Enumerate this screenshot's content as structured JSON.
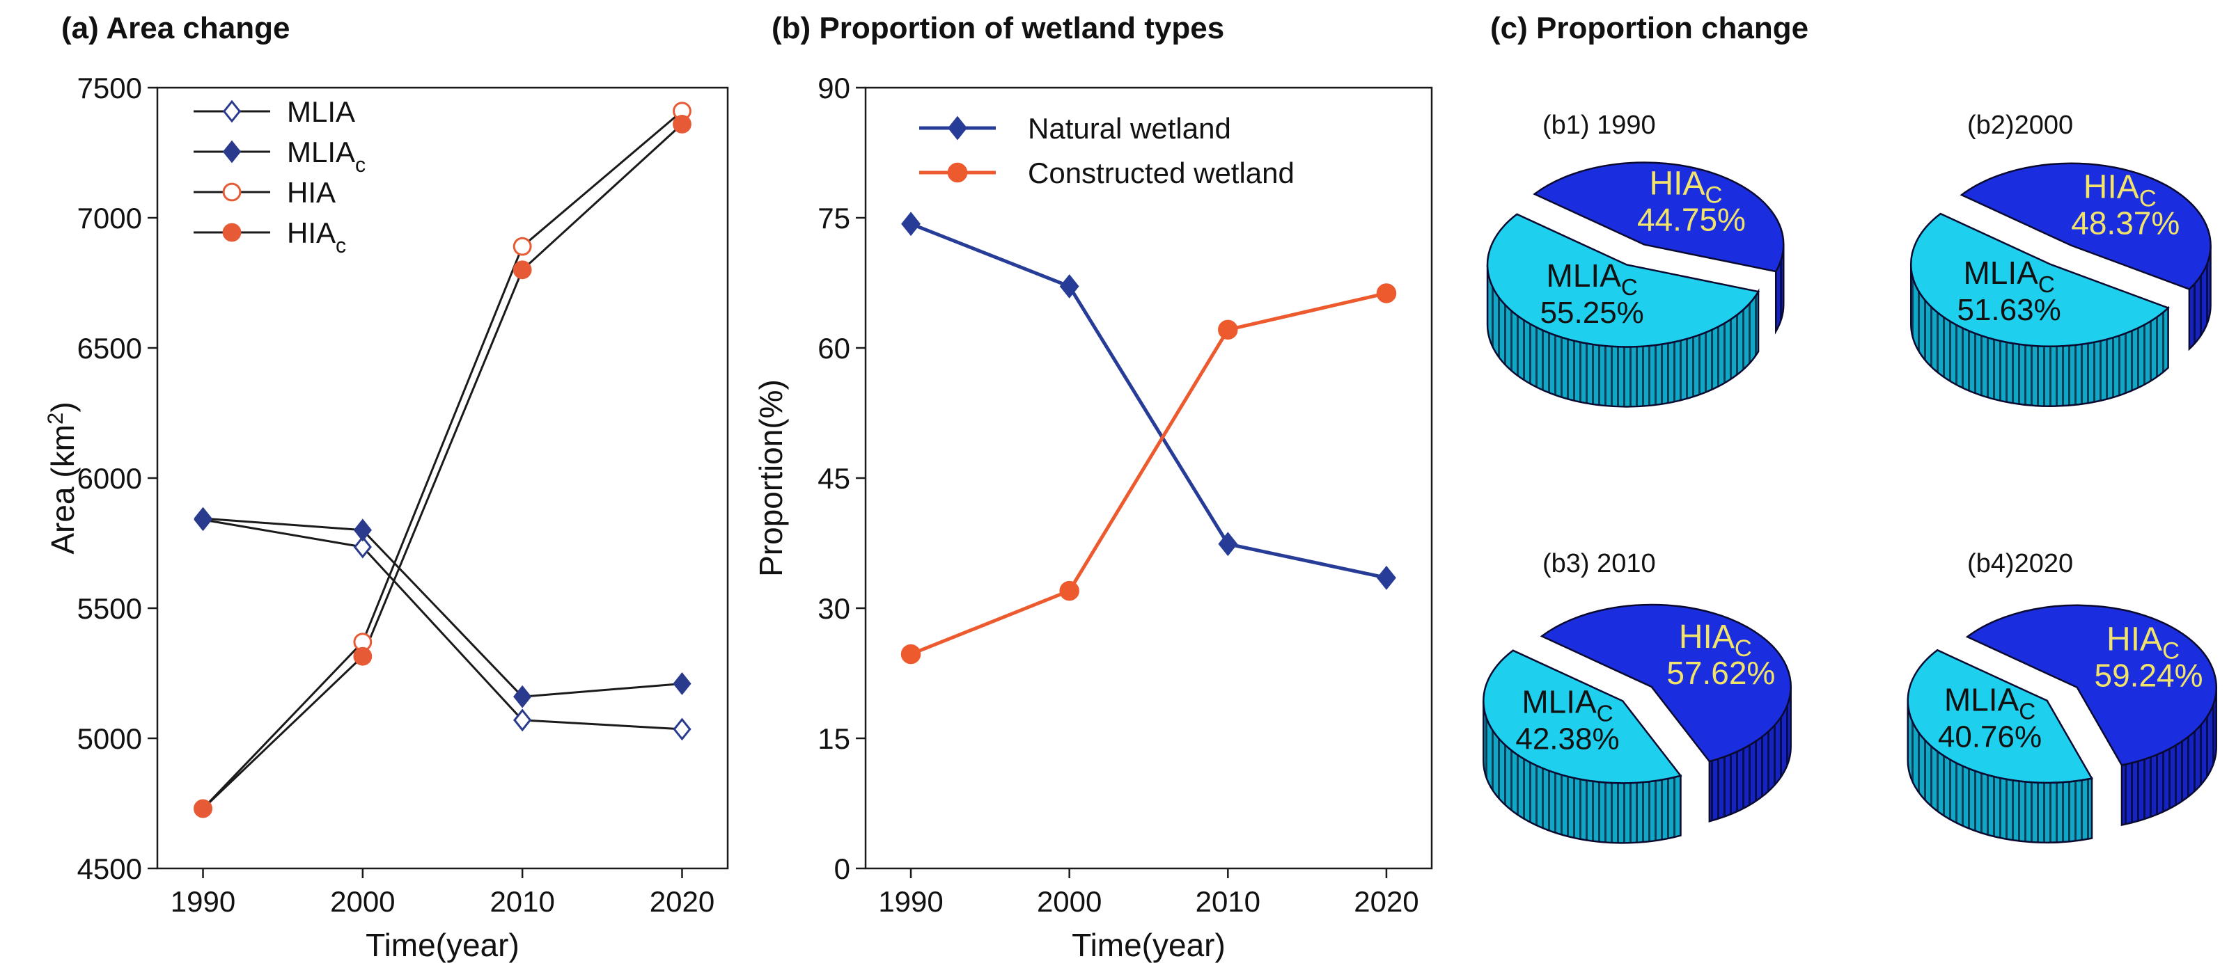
{
  "panels": {
    "a_title": "(a) Area change",
    "b_title": "(b) Proportion of wetland types",
    "c_title": "(c) Proportion change"
  },
  "chart_data": [
    {
      "type": "line",
      "id": "area-change",
      "title": "(a) Area change",
      "xlabel": "Time(year)",
      "ylabel_text": "Area (km",
      "ylabel_sup": "2",
      "ylabel_close": ")",
      "x": [
        1990,
        2000,
        2010,
        2020
      ],
      "xticks": [
        "1990",
        "2000",
        "2010",
        "2020"
      ],
      "ylim": [
        4500,
        7500
      ],
      "yticks": [
        4500,
        5000,
        5500,
        6000,
        6500,
        7000,
        7500
      ],
      "series": [
        {
          "name": "MLIA",
          "sub": "",
          "marker": "diamond-open",
          "color": "#2a3a8c",
          "values": [
            5840,
            5735,
            5070,
            5035
          ]
        },
        {
          "name": "MLIA",
          "sub": "c",
          "marker": "diamond-filled",
          "color": "#2a3a8c",
          "values": [
            5845,
            5800,
            5160,
            5210
          ]
        },
        {
          "name": "HIA",
          "sub": "",
          "marker": "circle-open",
          "color": "#e65b36",
          "values": [
            4730,
            5370,
            6890,
            7410
          ]
        },
        {
          "name": "HIA",
          "sub": "c",
          "marker": "circle-filled",
          "color": "#e65b36",
          "values": [
            4730,
            5315,
            6800,
            7360
          ]
        }
      ],
      "line_color": "#1a1a1a"
    },
    {
      "type": "line",
      "id": "wetland-proportion",
      "title": "(b) Proportion of wetland types",
      "xlabel": "Time(year)",
      "ylabel": "Proportion(%)",
      "x": [
        1990,
        2000,
        2010,
        2020
      ],
      "xticks": [
        "1990",
        "2000",
        "2010",
        "2020"
      ],
      "ylim": [
        0,
        90
      ],
      "yticks": [
        0,
        15,
        30,
        45,
        60,
        75,
        90
      ],
      "series": [
        {
          "name": "Natural  wetland",
          "marker": "diamond-filled",
          "color": "#263c96",
          "values": [
            74.3,
            67.1,
            37.4,
            33.5
          ]
        },
        {
          "name": "Constructed wetland",
          "marker": "circle-filled",
          "color": "#ec5a2e",
          "values": [
            24.7,
            32.0,
            62.1,
            66.3
          ]
        }
      ]
    },
    {
      "type": "pie",
      "id": "proportion-change",
      "title": "(c) Proportion change",
      "colors": {
        "HIA": "#1a2ee0",
        "MLIA": "#1ed0ee"
      },
      "pies": [
        {
          "label": "(b1) 1990",
          "slices": [
            {
              "name": "HIA",
              "sub": "C",
              "value": 44.75,
              "pct": "44.75%"
            },
            {
              "name": "MLIA",
              "sub": "C",
              "value": 55.25,
              "pct": "55.25%"
            }
          ]
        },
        {
          "label": "(b2)2000",
          "slices": [
            {
              "name": "HIA",
              "sub": "C",
              "value": 48.37,
              "pct": "48.37%"
            },
            {
              "name": "MLIA",
              "sub": "C",
              "value": 51.63,
              "pct": "51.63%"
            }
          ]
        },
        {
          "label": "(b3) 2010",
          "slices": [
            {
              "name": "HIA",
              "sub": "C",
              "value": 57.62,
              "pct": "57.62%"
            },
            {
              "name": "MLIA",
              "sub": "C",
              "value": 42.38,
              "pct": "42.38%"
            }
          ]
        },
        {
          "label": "(b4)2020",
          "slices": [
            {
              "name": "HIA",
              "sub": "C",
              "value": 59.24,
              "pct": "59.24%"
            },
            {
              "name": "MLIA",
              "sub": "C",
              "value": 40.76,
              "pct": "40.76%"
            }
          ]
        }
      ]
    }
  ]
}
